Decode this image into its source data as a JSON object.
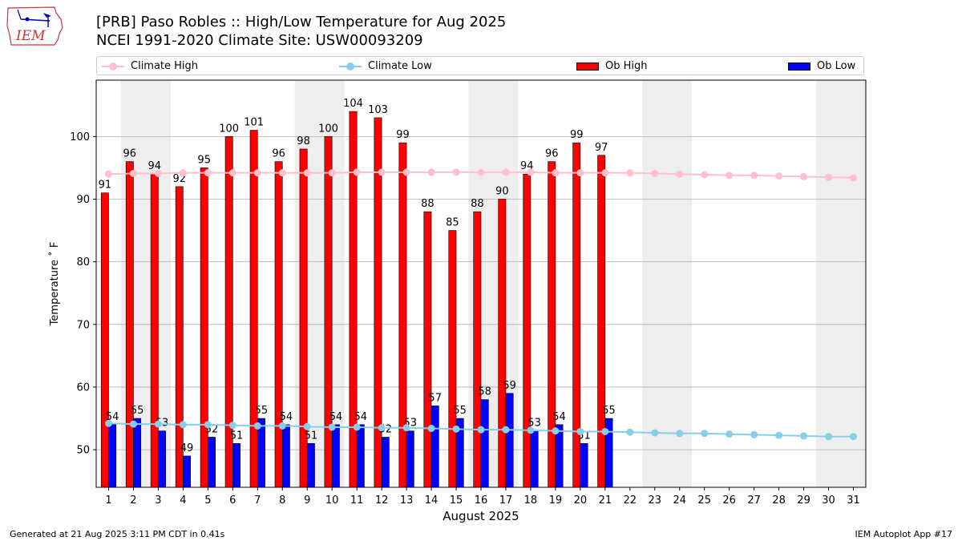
{
  "header": {
    "logo_text": "IEM",
    "title_line1": "[PRB] Paso Robles :: High/Low Temperature for Aug 2025",
    "title_line2": "NCEI 1991-2020 Climate Site: USW00093209"
  },
  "legend": {
    "placement": "top",
    "items": [
      {
        "label": "Climate High",
        "kind": "line-marker",
        "color": "#ffc0cb"
      },
      {
        "label": "Climate Low",
        "kind": "line-marker",
        "color": "#87ceeb"
      },
      {
        "label": "Ob High",
        "kind": "bar",
        "color": "#ff0000"
      },
      {
        "label": "Ob Low",
        "kind": "bar",
        "color": "#0000ff"
      }
    ]
  },
  "footer": {
    "left": "Generated at 21 Aug 2025 3:11 PM CDT in 0.41s",
    "right": "IEM Autoplot App #17"
  },
  "chart_data": {
    "type": "bar",
    "xlabel": "August 2025",
    "ylabel": "Temperature ˚ F",
    "xlim": [
      0.5,
      31.5
    ],
    "ylim": [
      44,
      109
    ],
    "yticks": [
      50,
      60,
      70,
      80,
      90,
      100
    ],
    "grid": "horizontal",
    "weekend_shading": [
      [
        1.5,
        3.5
      ],
      [
        8.5,
        10.5
      ],
      [
        15.5,
        17.5
      ],
      [
        22.5,
        24.5
      ],
      [
        29.5,
        31.5
      ]
    ],
    "days": [
      1,
      2,
      3,
      4,
      5,
      6,
      7,
      8,
      9,
      10,
      11,
      12,
      13,
      14,
      15,
      16,
      17,
      18,
      19,
      20,
      21,
      22,
      23,
      24,
      25,
      26,
      27,
      28,
      29,
      30,
      31
    ],
    "series": [
      {
        "name": "Ob High",
        "kind": "bar",
        "color": "#ff0000",
        "values": [
          91,
          96,
          94,
          92,
          95,
          100,
          101,
          96,
          98,
          100,
          104,
          103,
          99,
          88,
          85,
          88,
          90,
          94,
          96,
          99,
          97
        ]
      },
      {
        "name": "Ob Low",
        "kind": "bar",
        "color": "#0000ff",
        "values": [
          54,
          55,
          53,
          49,
          52,
          51,
          55,
          54,
          51,
          54,
          54,
          52,
          53,
          57,
          55,
          58,
          59,
          53,
          54,
          51,
          55
        ]
      },
      {
        "name": "Climate High",
        "kind": "line",
        "color": "#ffc0cb",
        "values": [
          94.0,
          94.1,
          94.1,
          94.2,
          94.2,
          94.2,
          94.2,
          94.2,
          94.2,
          94.2,
          94.3,
          94.3,
          94.3,
          94.3,
          94.3,
          94.3,
          94.3,
          94.3,
          94.2,
          94.2,
          94.2,
          94.2,
          94.1,
          94.0,
          93.9,
          93.8,
          93.8,
          93.7,
          93.6,
          93.5,
          93.4
        ]
      },
      {
        "name": "Climate Low",
        "kind": "line",
        "color": "#87ceeb",
        "values": [
          54.2,
          54.1,
          54.1,
          54.0,
          54.0,
          53.9,
          53.8,
          53.8,
          53.7,
          53.6,
          53.6,
          53.5,
          53.5,
          53.4,
          53.3,
          53.2,
          53.2,
          53.1,
          53.0,
          52.9,
          52.9,
          52.8,
          52.7,
          52.6,
          52.6,
          52.5,
          52.4,
          52.3,
          52.2,
          52.1,
          52.1
        ]
      }
    ]
  }
}
